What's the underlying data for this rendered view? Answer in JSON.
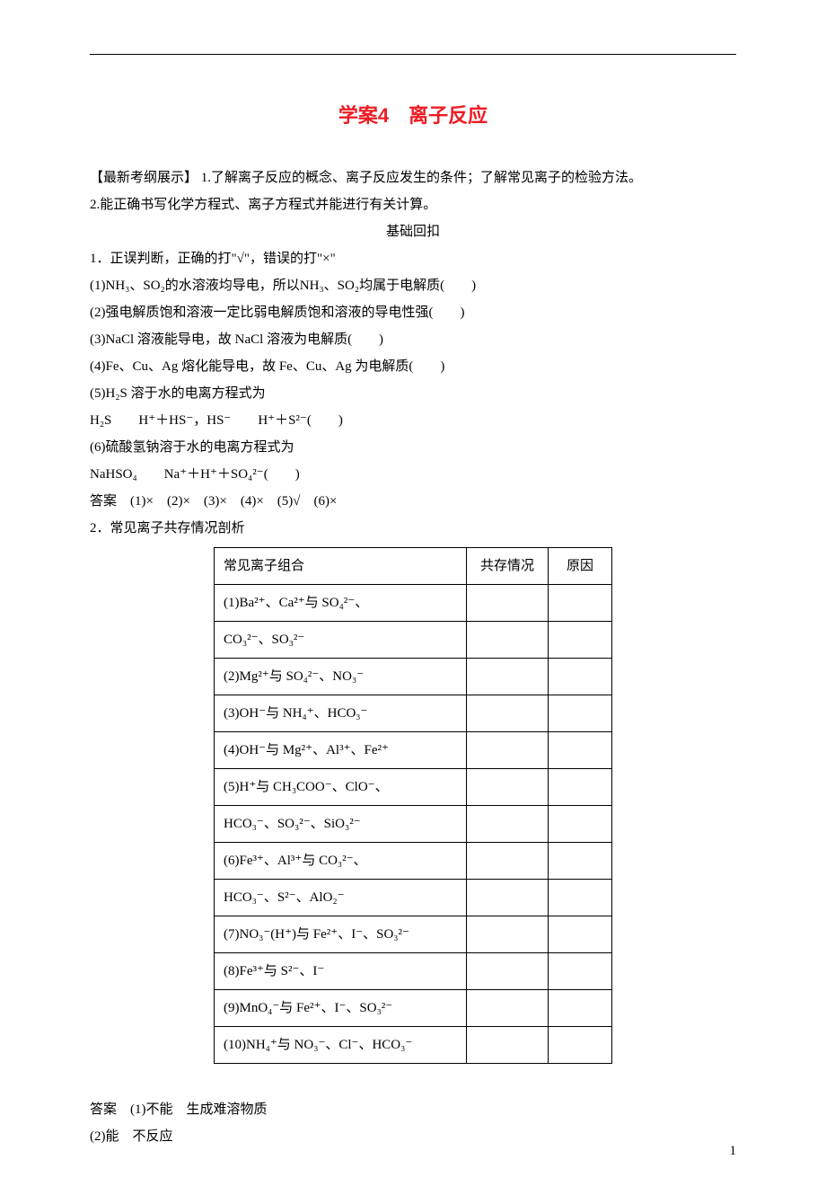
{
  "title": "学案4　离子反应",
  "intro_label": "【最新考纲展示】",
  "intro_1": "1.了解离子反应的概念、离子反应发生的条件；了解常见离子的检验方法。",
  "intro_2": "2.能正确书写化学方程式、离子方程式并能进行有关计算。",
  "section_basics": "基础回扣",
  "q1_stem": "1．正误判断，正确的打\"√\"，错误的打\"×\"",
  "q1_items": {
    "i1": "(1)NH₃、SO₂的水溶液均导电，所以NH₃、SO₂均属于电解质(　　)",
    "i2": "(2)强电解质饱和溶液一定比弱电解质饱和溶液的导电性强(　　)",
    "i3": "(3)NaCl 溶液能导电，故 NaCl 溶液为电解质(　　)",
    "i4": "(4)Fe、Cu、Ag 熔化能导电，故 Fe、Cu、Ag 为电解质(　　)",
    "i5": "(5)H₂S 溶于水的电离方程式为",
    "i5b": "H₂S　　H⁺＋HS⁻，HS⁻　　H⁺＋S²⁻(　　)",
    "i6": "(6)硫酸氢钠溶于水的电离方程式为",
    "i6b": "NaHSO₄　　Na⁺＋H⁺＋SO₄²⁻(　　)"
  },
  "q1_answer": "答案　(1)×　(2)×　(3)×　(4)×　(5)√　(6)×",
  "q2_stem": "2．常见离子共存情况剖析",
  "table": {
    "headers": [
      "常见离子组合",
      "共存情况",
      "原因"
    ],
    "rows": [
      "(1)Ba²⁺、Ca²⁺与 SO₄²⁻、",
      "CO₃²⁻、SO₃²⁻",
      "(2)Mg²⁺与 SO₄²⁻、NO₃⁻",
      "(3)OH⁻与 NH₄⁺、HCO₃⁻",
      "(4)OH⁻与 Mg²⁺、Al³⁺、Fe²⁺",
      "(5)H⁺与 CH₃COO⁻、ClO⁻、",
      "HCO₃⁻、SO₃²⁻、SiO₃²⁻",
      "(6)Fe³⁺、Al³⁺与 CO₃²⁻、",
      "HCO₃⁻、S²⁻、AlO₂⁻",
      "(7)NO₃⁻(H⁺)与 Fe²⁺、I⁻、SO₃²⁻",
      "(8)Fe³⁺与 S²⁻、I⁻",
      "(9)MnO₄⁻与 Fe²⁺、I⁻、SO₃²⁻",
      "(10)NH₄⁺与 NO₃⁻、Cl⁻、HCO₃⁻"
    ]
  },
  "q2_answers": {
    "a1": "答案　(1)不能　生成难溶物质",
    "a2": "(2)能　不反应"
  },
  "page_number": "1",
  "colors": {
    "title": "#ed1c24",
    "text": "#000000",
    "background": "#ffffff",
    "border": "#000000"
  },
  "fonts": {
    "title_size": 22,
    "body_size": 15
  }
}
